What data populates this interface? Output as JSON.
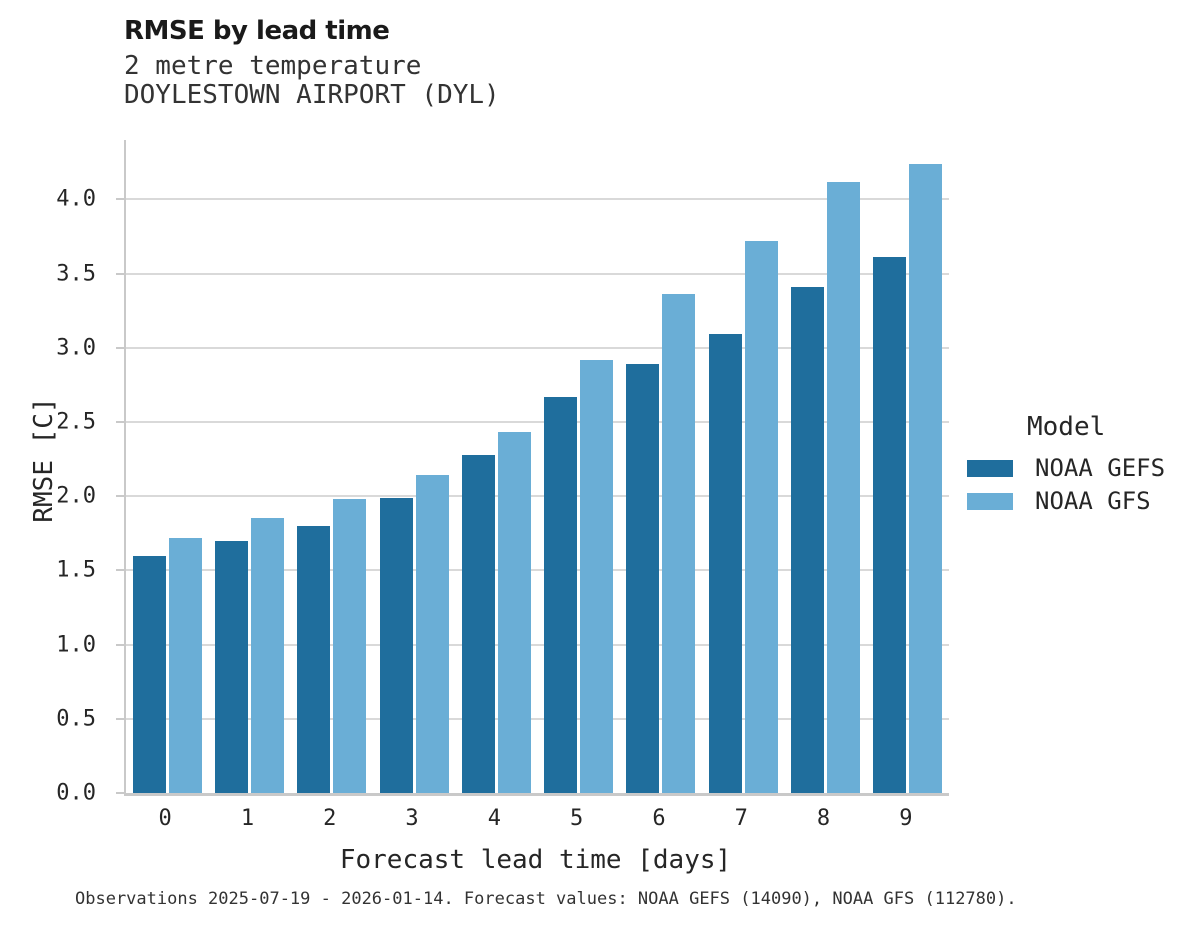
{
  "chart_data": {
    "type": "bar",
    "title": "RMSE by lead time",
    "subtitle1": "2 metre temperature",
    "subtitle2": "DOYLESTOWN AIRPORT (DYL)",
    "xlabel": "Forecast lead time [days]",
    "ylabel": "RMSE [C]",
    "categories": [
      "0",
      "1",
      "2",
      "3",
      "4",
      "5",
      "6",
      "7",
      "8",
      "9"
    ],
    "series": [
      {
        "name": "NOAA GEFS",
        "color": "#1f6e9d",
        "values": [
          1.6,
          1.7,
          1.8,
          1.99,
          2.28,
          2.67,
          2.89,
          3.09,
          3.41,
          3.61
        ]
      },
      {
        "name": "NOAA GFS",
        "color": "#6aaed6",
        "values": [
          1.72,
          1.85,
          1.98,
          2.14,
          2.43,
          2.92,
          3.36,
          3.72,
          4.12,
          4.24
        ]
      }
    ],
    "ylim": [
      0,
      4.4
    ],
    "yticks": [
      0.0,
      0.5,
      1.0,
      1.5,
      2.0,
      2.5,
      3.0,
      3.5,
      4.0
    ],
    "grid": "horizontal",
    "legend_title": "Model",
    "legend_position": "center-right"
  },
  "colors": {
    "grid": "#d9d9d9",
    "spine": "#c9c9c9",
    "text": "#262626"
  },
  "caption": "Observations 2025-07-19 - 2026-01-14. Forecast values: NOAA GEFS (14090), NOAA GFS (112780)."
}
